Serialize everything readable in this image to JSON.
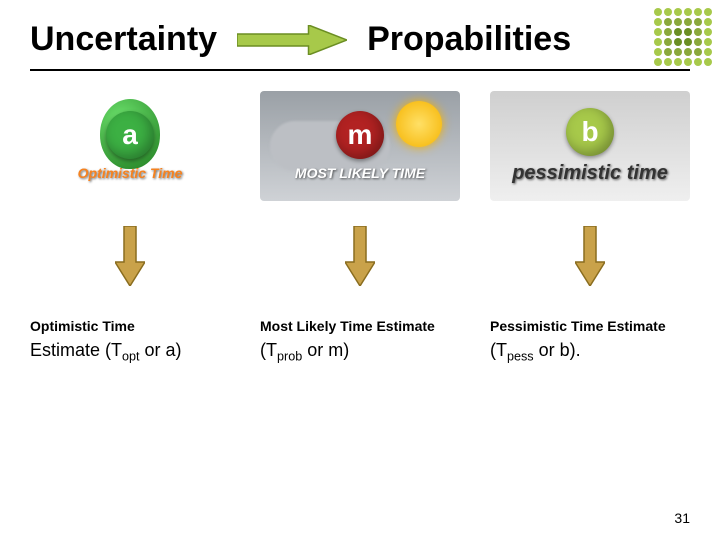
{
  "title": {
    "left": "Uncertainty",
    "right": "Propabilities"
  },
  "title_arrow": {
    "fill": "#a7c94a",
    "stroke": "#6b8e23",
    "width": 110,
    "height": 30
  },
  "dots": {
    "colors": [
      "#a7c94a",
      "#a7c94a",
      "#a7c94a",
      "#a7c94a",
      "#a7c94a",
      "#a7c94a",
      "#a7c94a",
      "#8aa83b",
      "#8aa83b",
      "#8aa83b",
      "#8aa83b",
      "#a7c94a",
      "#a7c94a",
      "#8aa83b",
      "#6b8e23",
      "#6b8e23",
      "#8aa83b",
      "#a7c94a",
      "#a7c94a",
      "#8aa83b",
      "#6b8e23",
      "#6b8e23",
      "#8aa83b",
      "#a7c94a",
      "#a7c94a",
      "#8aa83b",
      "#8aa83b",
      "#8aa83b",
      "#8aa83b",
      "#a7c94a",
      "#a7c94a",
      "#a7c94a",
      "#a7c94a",
      "#a7c94a",
      "#a7c94a",
      "#a7c94a"
    ]
  },
  "cards": [
    {
      "letter": "a",
      "letter_bg": "#3cb043",
      "caption": "Optimistic Time",
      "caption_color": "#f58220",
      "bg": "#ffffff",
      "sun": false,
      "balloon": true
    },
    {
      "letter": "m",
      "letter_bg": "#b22222",
      "caption": "MOST LIKELY TIME",
      "caption_color": "#ffffff",
      "bg": "linear-gradient(#9aa0a6,#cfd2d6)",
      "sun": true,
      "balloon": false
    },
    {
      "letter": "b",
      "letter_bg": "#a7c94a",
      "caption": "pessimistic time",
      "caption_color": "#333333",
      "bg": "linear-gradient(#cfcfcf,#efefef)",
      "sun": false,
      "balloon": false,
      "wide_text": true
    }
  ],
  "down_arrow": {
    "fill": "#c9a24a",
    "stroke": "#8a6d1f",
    "width": 30,
    "height": 60
  },
  "labels": [
    {
      "line1": "Optimistic Time",
      "t": "T",
      "sub": "opt",
      "alt": "a",
      "suffix": ")"
    },
    {
      "line1": "Most Likely Time Estimate",
      "t": "T",
      "sub": "prob",
      "alt": "m",
      "suffix": ")"
    },
    {
      "line1": "Pessimistic Time Estimate",
      "t": "T",
      "sub": "pess",
      "alt": "b",
      "suffix": ")."
    }
  ],
  "label_first_extra": "Estimate ",
  "page_number": "31"
}
